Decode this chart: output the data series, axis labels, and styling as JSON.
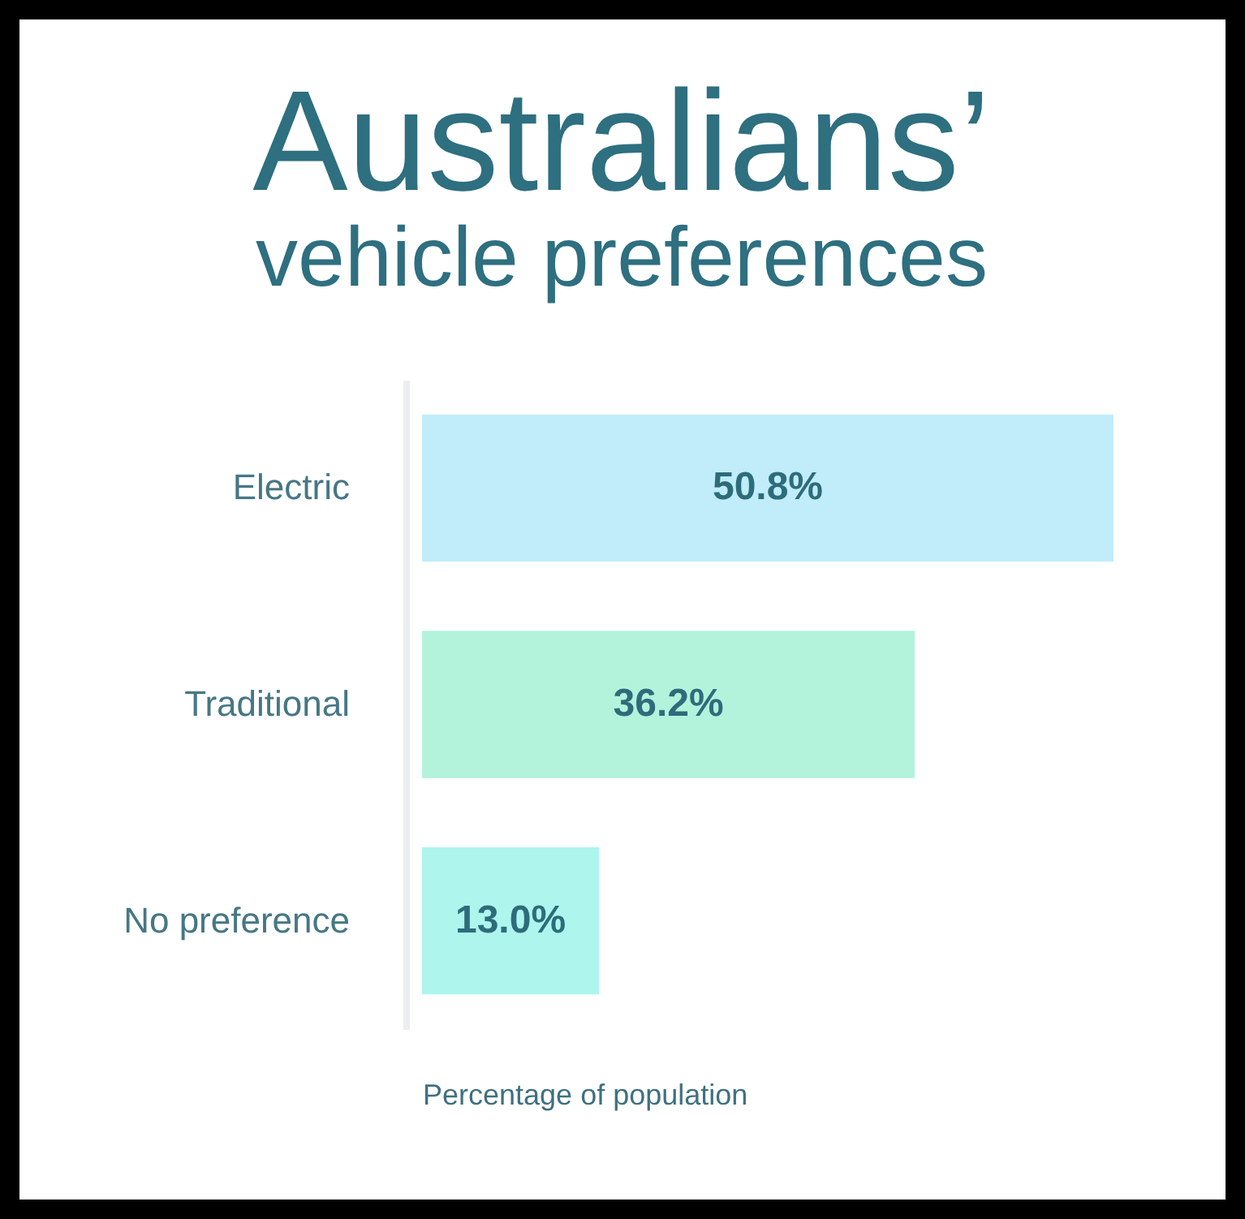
{
  "chart_data": {
    "type": "bar",
    "orientation": "horizontal",
    "title": "Australians’",
    "subtitle": "vehicle preferences",
    "xlabel": "Percentage of population",
    "categories": [
      "Electric",
      "Traditional",
      "No preference"
    ],
    "values": [
      50.8,
      36.2,
      13.0
    ],
    "value_labels": [
      "50.8%",
      "36.2%",
      "13.0%"
    ],
    "colors": [
      "#c0edf9",
      "#b3f3dc",
      "#adf5ed"
    ],
    "tick_labels": "y"
  }
}
